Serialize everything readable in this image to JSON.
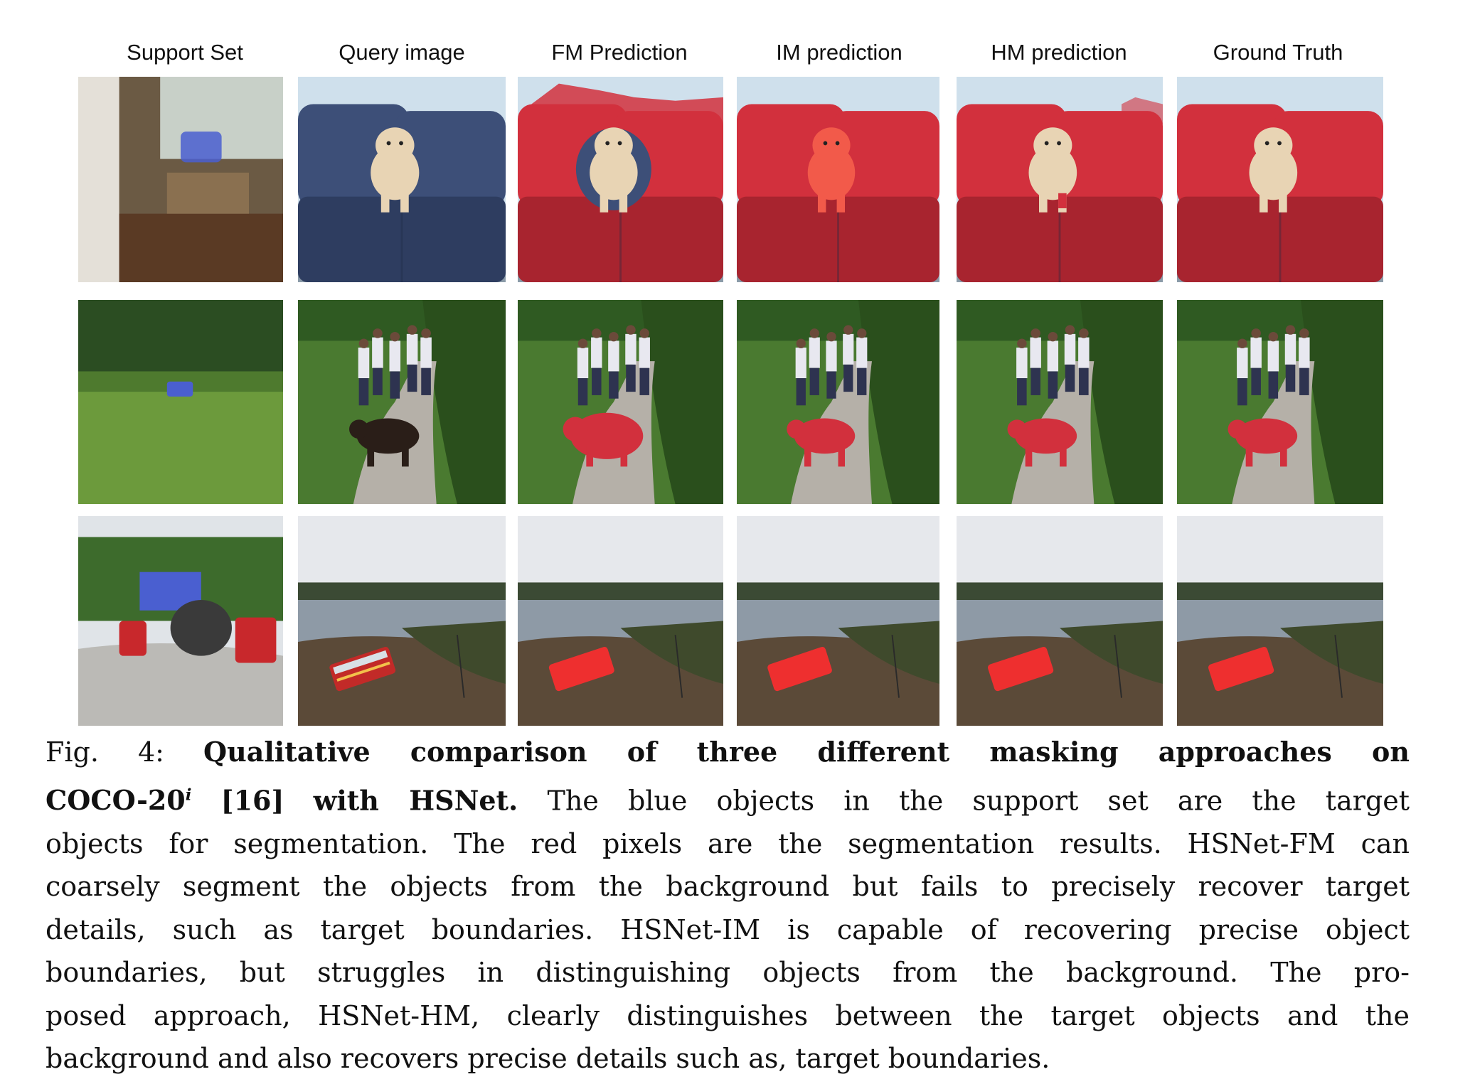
{
  "columns": [
    "Support Set",
    "Query image",
    "FM Prediction",
    "IM prediction",
    "HM prediction",
    "Ground Truth"
  ],
  "rows": [
    {
      "scene": "sofa-with-dog",
      "support": "living-room-blue-sofa"
    },
    {
      "scene": "bear-on-path",
      "support": "field-blue-bear"
    },
    {
      "scene": "bus-at-harbor",
      "support": "street-blue-elephant"
    }
  ],
  "colors": {
    "mask_red": "#d2303d",
    "support_blue": "#4a5fd0"
  },
  "caption": {
    "fig_label": "Fig. 4:",
    "bold_part1": "Qualitative comparison of three different masking approaches on",
    "bold_part2": "COCO-20",
    "superscript": "i",
    "bold_ref": "[16]",
    "bold_part3": "with HSNet.",
    "line2_rest": "The blue objects in the support set are the target",
    "line3": "objects for segmentation. The red pixels are the segmentation results. HSNet-FM can",
    "line4": "coarsely segment the objects from the background but fails to precisely recover target",
    "line5": "details, such as target boundaries. HSNet-IM is capable of recovering precise object",
    "line6": "boundaries, but struggles in distinguishing objects from the background. The pro-",
    "line7": "posed approach, HSNet-HM, clearly distinguishes between the target objects and the",
    "line8": "background and also recovers precise details such as, target boundaries."
  }
}
